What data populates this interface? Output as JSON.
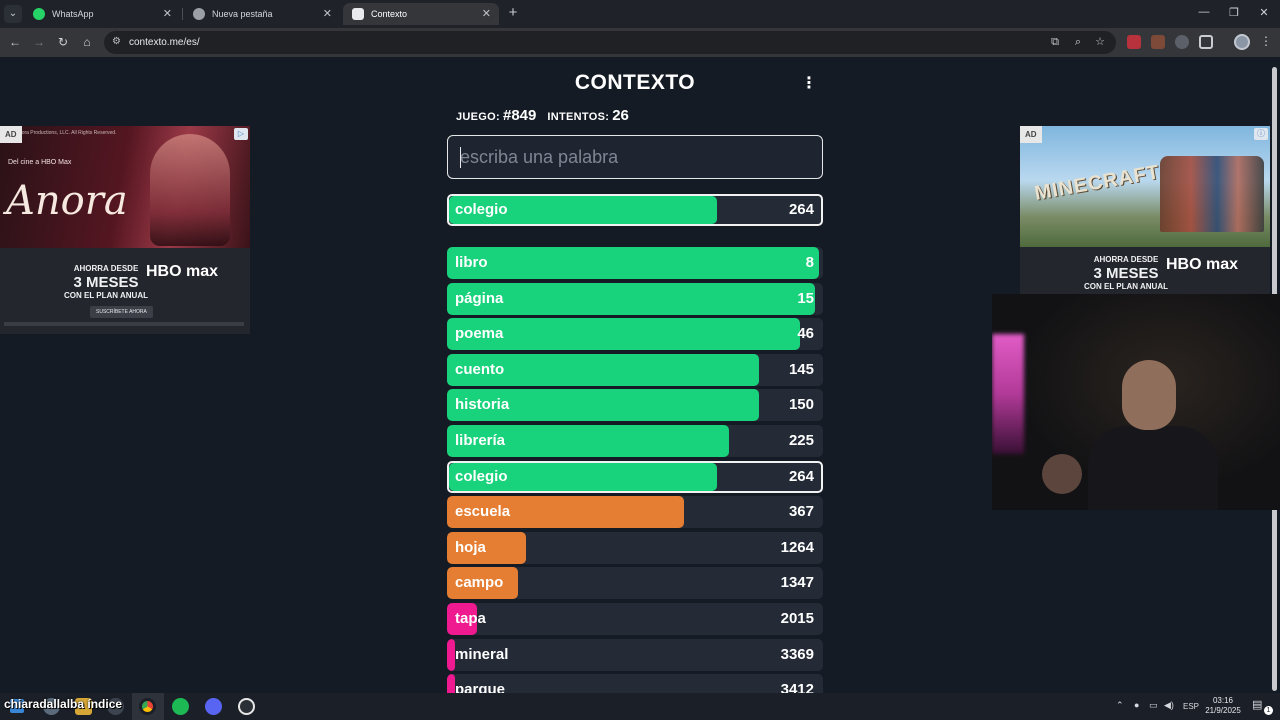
{
  "browser": {
    "tabs": [
      {
        "label": "WhatsApp",
        "favicon_color": "#25d366"
      },
      {
        "label": "Nueva pestaña",
        "favicon_color": "#9aa0a6"
      },
      {
        "label": "Contexto",
        "favicon_color": "#e8eaed"
      }
    ],
    "url": "contexto.me/es/"
  },
  "game": {
    "title": "CONTEXTO",
    "game_label": "JUEGO:",
    "game_number": "#849",
    "attempts_label": "INTENTOS:",
    "attempts": "26",
    "input_placeholder": "escriba una palabra",
    "last_guess": {
      "word": "colegio",
      "rank": "264",
      "fill_pct": 72,
      "color": "#19d27c"
    },
    "guesses": [
      {
        "word": "libro",
        "rank": "8",
        "fill_pct": 99,
        "color": "#19d27c"
      },
      {
        "word": "página",
        "rank": "15",
        "fill_pct": 98,
        "color": "#19d27c"
      },
      {
        "word": "poema",
        "rank": "46",
        "fill_pct": 94,
        "color": "#19d27c"
      },
      {
        "word": "cuento",
        "rank": "145",
        "fill_pct": 83,
        "color": "#19d27c"
      },
      {
        "word": "historia",
        "rank": "150",
        "fill_pct": 83,
        "color": "#19d27c"
      },
      {
        "word": "librería",
        "rank": "225",
        "fill_pct": 75,
        "color": "#19d27c"
      },
      {
        "word": "colegio",
        "rank": "264",
        "fill_pct": 72,
        "color": "#19d27c",
        "highlight": true
      },
      {
        "word": "escuela",
        "rank": "367",
        "fill_pct": 63,
        "color": "#e57e32"
      },
      {
        "word": "hoja",
        "rank": "1264",
        "fill_pct": 21,
        "color": "#e57e32"
      },
      {
        "word": "campo",
        "rank": "1347",
        "fill_pct": 19,
        "color": "#e57e32"
      },
      {
        "word": "tapa",
        "rank": "2015",
        "fill_pct": 8,
        "color": "#ef1a8f"
      },
      {
        "word": "mineral",
        "rank": "3369",
        "fill_pct": 2,
        "color": "#ef1a8f"
      },
      {
        "word": "parque",
        "rank": "3412",
        "fill_pct": 2,
        "color": "#ef1a8f"
      }
    ]
  },
  "ads": {
    "tag": "AD",
    "left": {
      "fineprint": "© Annora Productions, LLC. All Rights Reserved.",
      "brand_line": "Del cine a HBO Max",
      "film_title": "Anora",
      "offer_line1": "AHORRA DESDE",
      "offer_big": "3 MESES",
      "offer_line2": "CON EL PLAN ANUAL",
      "logo": "HBO max",
      "cta": "SUSCRÍBETE AHORA"
    },
    "right": {
      "film_title": "MINECRAFT",
      "offer_line1": "AHORRA DESDE",
      "offer_big": "3 MESES",
      "offer_line2": "CON EL PLAN ANUAL",
      "logo": "HBO max"
    }
  },
  "taskbar": {
    "overlay_text": "chiaradallalba índice",
    "language": "ESP",
    "time": "03:16",
    "date": "21/9/2025",
    "notification_count": "1"
  }
}
